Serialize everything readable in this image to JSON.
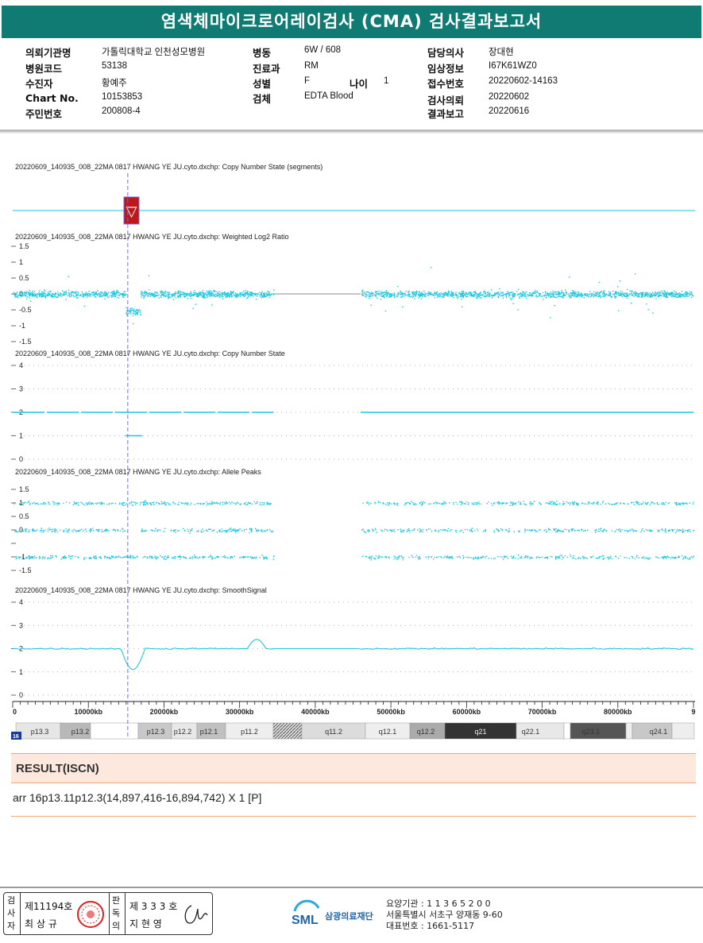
{
  "report": {
    "title": "염색체마이크로어레이검사 (CMA) 검사결과보고서"
  },
  "patient": {
    "institution_label": "의뢰기관명",
    "institution": "가톨릭대학교 인천성모병원",
    "hospital_code_label": "병원코드",
    "hospital_code": "53138",
    "examinee_label": "수진자",
    "examinee": "황예주",
    "chart_label": "Chart No.",
    "chart": "10153853",
    "id_label": "주민번호",
    "id": "200808-4",
    "ward_label": "병동",
    "ward": "6W / 608",
    "dept_label": "진료과",
    "dept": "RM",
    "sex_label": "성별",
    "sex": "F",
    "age_label": "나이",
    "age": "1",
    "specimen_label": "검체",
    "specimen": "EDTA Blood",
    "doctor_label": "담당의사",
    "doctor": "장대현",
    "clinical_label": "임상정보",
    "clinical": "I67K61WZ0",
    "receipt_label": "접수번호",
    "receipt": "20220602-14163",
    "request_label": "검사의뢰",
    "request": "20220602",
    "report_date_label": "결과보고",
    "report_date": "20220616"
  },
  "chart_data": {
    "type": "scatter",
    "x_unit": "kb",
    "x_ticks": [
      "0",
      "10000kb",
      "20000kb",
      "30000kb",
      "40000kb",
      "50000kb",
      "60000kb",
      "70000kb",
      "80000kb",
      "9"
    ],
    "x_tick_values": [
      0,
      10000,
      20000,
      30000,
      40000,
      50000,
      60000,
      70000,
      80000,
      90000
    ],
    "xlim": [
      0,
      90000
    ],
    "marker_position_kb": 14897,
    "tracks": [
      {
        "title": "20220609_140935_008_22MA 0817 HWANG YE JU.cyto.dxchp: Copy Number State (segments)",
        "y_ticks": []
      },
      {
        "title": "20220609_140935_008_22MA 0817 HWANG YE JU.cyto.dxchp: Weighted Log2 Ratio",
        "y_ticks": [
          "1.5",
          "1",
          "0.5",
          "0",
          "-0.5",
          "-1",
          "-1.5"
        ]
      },
      {
        "title": "20220609_140935_008_22MA 0817 HWANG YE JU.cyto.dxchp: Copy Number State",
        "y_ticks": [
          "4",
          "3",
          "2",
          "1",
          "0"
        ]
      },
      {
        "title": "20220609_140935_008_22MA 0817 HWANG YE JU.cyto.dxchp: Allele Peaks",
        "y_ticks": [
          "1.5",
          "1",
          "0.5",
          "0",
          "",
          "-1",
          "-1.5"
        ]
      },
      {
        "title": "20220609_140935_008_22MA 0817 HWANG YE JU.cyto.dxchp: SmoothSignal",
        "y_ticks": [
          "4",
          "3",
          "2",
          "1",
          "0"
        ]
      }
    ],
    "segments": [
      {
        "start_kb": 14897,
        "end_kb": 16895,
        "copy_number": 1,
        "type": "loss"
      }
    ],
    "data_gaps_kb": [
      [
        34500,
        46000
      ]
    ],
    "smooth_signal": {
      "baseline": 2,
      "dip_min": 1.1,
      "dip_range_kb": [
        14897,
        16895
      ],
      "bump_max": 2.4,
      "bump_range_kb": [
        31000,
        33500
      ]
    },
    "ideogram": {
      "chromosome": "16",
      "bands": [
        "p13.3",
        "p13.2",
        "p12.3",
        "p12.2",
        "p12.1",
        "p11.2",
        "q11.2",
        "q12.1",
        "q12.2",
        "q21",
        "q22.1",
        "q23.1",
        "q24.1"
      ]
    },
    "colors": {
      "data": "#1ec6e0",
      "marker": "#7070e0",
      "loss": "#c01818"
    }
  },
  "result": {
    "title": "RESULT(ISCN)",
    "text": "arr 16p13.11p12.3(14,897,416-16,894,742) X 1 [P]"
  },
  "footer": {
    "sign_label_1": "검사자",
    "signer1_no": "제11194호",
    "signer1_name": "최 상 규",
    "sign_label_2": "판독의",
    "signer2_no": "제 3 3 3 호",
    "signer2_name": "지 현 영",
    "logo_mark": "SML",
    "logo_text": "삼광의료재단",
    "contact_1": "요양기관 : 1 1 3 6 5 2 0 0",
    "contact_2": "서울특별시 서초구 양재동 9-60",
    "contact_3": "대표번호 : 1661-5117"
  }
}
